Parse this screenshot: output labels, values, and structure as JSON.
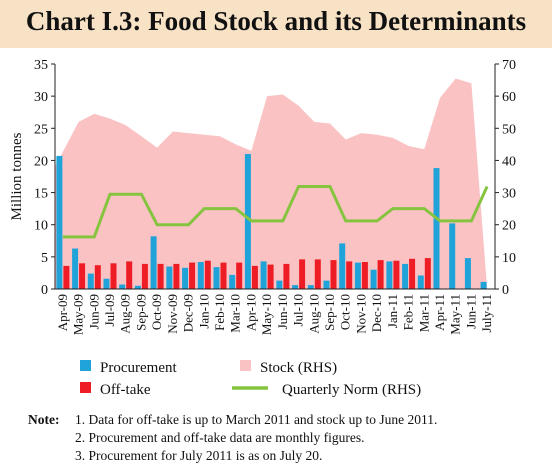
{
  "chart_data": {
    "type": "bar",
    "title": "Chart I.3: Food Stock and its Determinants",
    "ylabel": "Million tonnes",
    "y_left": {
      "range": [
        0,
        35
      ],
      "ticks": [
        "0",
        "5",
        "10",
        "15",
        "20",
        "25",
        "30",
        "35"
      ]
    },
    "y_right": {
      "range": [
        0,
        70
      ],
      "ticks": [
        "0",
        "10",
        "20",
        "30",
        "40",
        "50",
        "60",
        "70"
      ]
    },
    "categories": [
      "Apr-09",
      "May-09",
      "Jun-09",
      "Jul-09",
      "Aug-09",
      "Sep-09",
      "Oct-09",
      "Nov-09",
      "Dec-09",
      "Jan-10",
      "Feb-10",
      "Mar-10",
      "Apr-10",
      "May-10",
      "Jun-10",
      "Jul-10",
      "Aug-10",
      "Sep-10",
      "Oct-10",
      "Nov-10",
      "Dec-10",
      "Jan-11",
      "Feb-11",
      "Mar-11",
      "Apr-11",
      "May-11",
      "Jun-11",
      "July-11"
    ],
    "series": [
      {
        "name": "Procurement",
        "kind": "bar",
        "axis": "left",
        "color": "#1fa3d9",
        "values": [
          20.7,
          6.3,
          2.4,
          1.6,
          0.7,
          0.5,
          8.2,
          3.5,
          3.3,
          4.2,
          3.4,
          2.2,
          21.0,
          4.3,
          1.3,
          0.6,
          0.6,
          1.3,
          7.1,
          4.1,
          3.0,
          4.3,
          3.9,
          2.1,
          18.8,
          10.2,
          4.8,
          1.1
        ]
      },
      {
        "name": "Off-take",
        "kind": "bar",
        "axis": "left",
        "color": "#ee1c25",
        "values": [
          3.6,
          4.0,
          3.7,
          4.0,
          4.3,
          3.9,
          3.9,
          3.9,
          4.1,
          4.4,
          4.1,
          4.1,
          3.6,
          3.8,
          3.9,
          4.6,
          4.6,
          4.5,
          4.3,
          4.2,
          4.5,
          4.4,
          4.7,
          4.8,
          null,
          null,
          null,
          null
        ]
      },
      {
        "name": "Stock (RHS)",
        "kind": "area",
        "axis": "right",
        "color": "#fbc2c4",
        "values": [
          null,
          52.0,
          54.5,
          53.0,
          51.0,
          47.5,
          44.0,
          49.0,
          48.5,
          48.0,
          47.5,
          45.0,
          43.0,
          60.0,
          60.5,
          57.0,
          52.0,
          51.5,
          46.5,
          48.5,
          48.0,
          47.0,
          44.5,
          43.5,
          59.5,
          65.5,
          64.0,
          null
        ]
      },
      {
        "name": "Quarterly Norm (RHS)",
        "kind": "line",
        "axis": "right",
        "color": "#86c440",
        "values": [
          16.2,
          16.2,
          16.2,
          29.5,
          29.5,
          29.5,
          20.0,
          20.0,
          20.0,
          25.0,
          25.0,
          25.0,
          21.2,
          21.2,
          21.2,
          31.9,
          31.9,
          31.9,
          21.2,
          21.2,
          21.2,
          25.0,
          25.0,
          25.0,
          21.2,
          21.2,
          21.2,
          31.9
        ]
      }
    ],
    "legend": {
      "placement": "bottom"
    },
    "grid": false
  },
  "notes": {
    "label": "Note",
    "items": [
      "1. Data for off-take is up to March 2011 and stock up to June 2011.",
      "2. Procurement and off-take data are monthly figures.",
      "3. Procurement for July 2011 is as on July 20."
    ]
  }
}
